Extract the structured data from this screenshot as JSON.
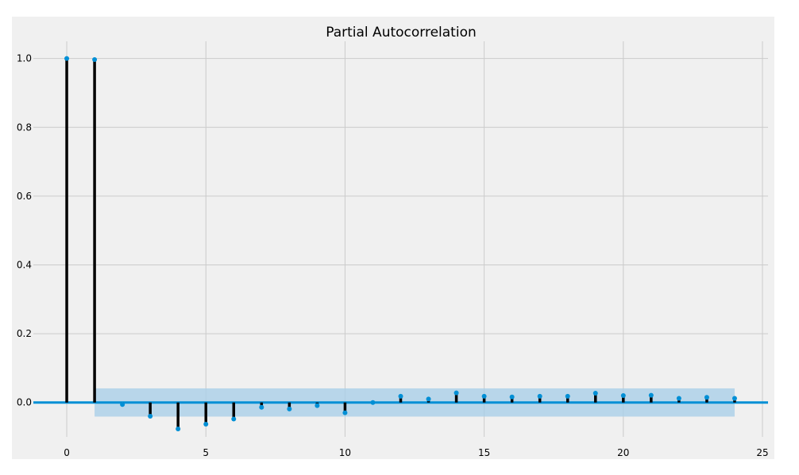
{
  "colors": {
    "figure_background": "#ffffff",
    "axes_background": "#f0f0f0",
    "grid": "#cbcbcb",
    "stem": "#000000",
    "marker": "#008fd5",
    "zero_line": "#008fd5",
    "confidence_band": "#a6cde8",
    "text": "#000000"
  },
  "chart_data": {
    "type": "stem",
    "title": "Partial Autocorrelation",
    "xlabel": "",
    "ylabel": "",
    "xlim": [
      -1.2,
      25.2
    ],
    "ylim": [
      -0.1,
      1.05
    ],
    "xticks": [
      0,
      5,
      10,
      15,
      20,
      25
    ],
    "yticks": [
      0.0,
      0.2,
      0.4,
      0.6,
      0.8,
      1.0
    ],
    "xtick_labels": [
      "0",
      "5",
      "10",
      "15",
      "20",
      "25"
    ],
    "ytick_labels": [
      "0.0",
      "0.2",
      "0.4",
      "0.6",
      "0.8",
      "1.0"
    ],
    "grid": true,
    "lags": [
      0,
      1,
      2,
      3,
      4,
      5,
      6,
      7,
      8,
      9,
      10,
      11,
      12,
      13,
      14,
      15,
      16,
      17,
      18,
      19,
      20,
      21,
      22,
      23,
      24
    ],
    "values": [
      1.0,
      0.997,
      -0.006,
      -0.04,
      -0.077,
      -0.063,
      -0.048,
      -0.014,
      -0.019,
      -0.009,
      -0.03,
      0.0,
      0.018,
      0.01,
      0.028,
      0.018,
      0.016,
      0.018,
      0.018,
      0.027,
      0.02,
      0.021,
      0.012,
      0.015,
      0.012
    ],
    "confidence_interval": {
      "x_range": [
        1,
        24
      ],
      "lower": -0.041,
      "upper": 0.041
    }
  }
}
